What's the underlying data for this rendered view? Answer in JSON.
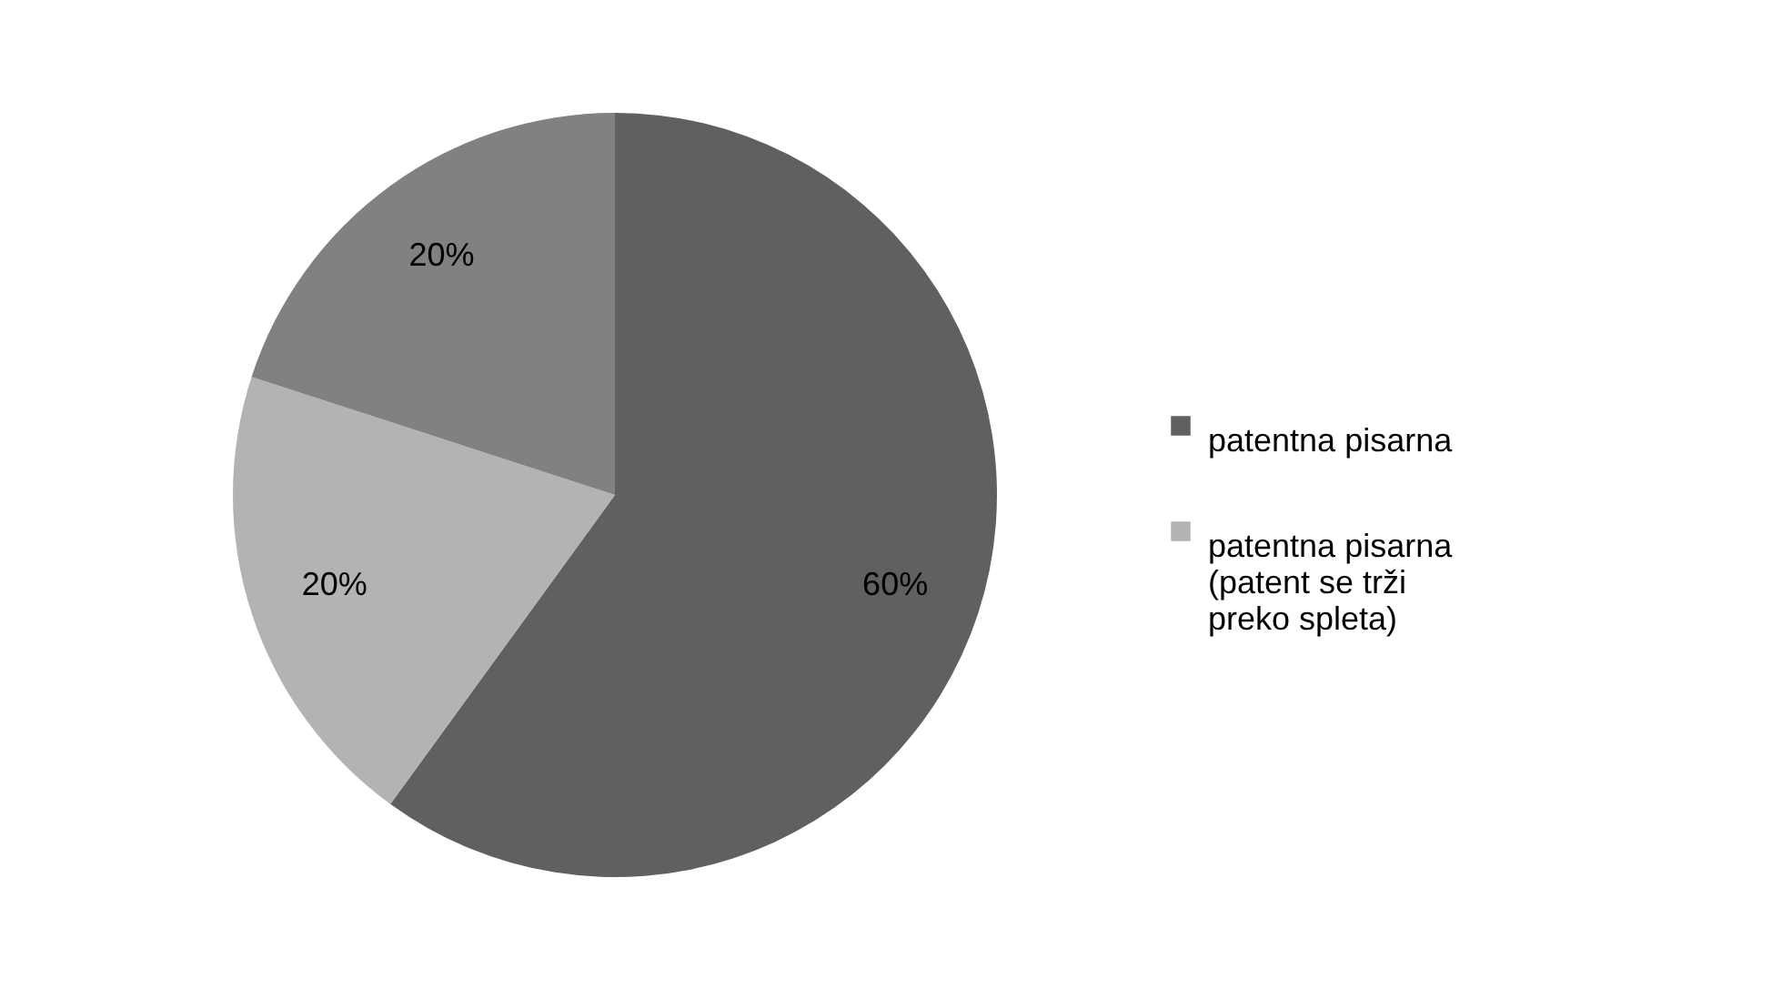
{
  "chart_data": {
    "type": "pie",
    "categories": [
      "patentna pisarna",
      "patentna pisarna (patent se trži preko spleta)",
      null
    ],
    "values": [
      60,
      20,
      20
    ],
    "colors": [
      "#606060",
      "#b3b3b3",
      "#818181"
    ],
    "value_labels": [
      "60%",
      "20%",
      "20%"
    ],
    "legend": "right"
  }
}
